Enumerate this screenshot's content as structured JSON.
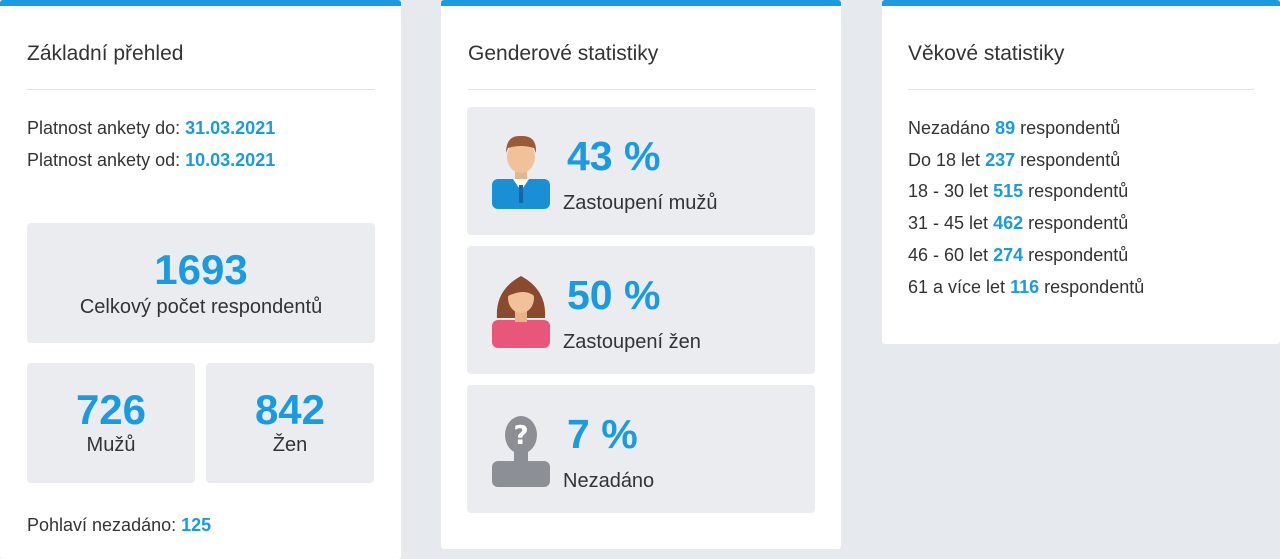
{
  "basic": {
    "title": "Základní přehled",
    "valid_to_label": "Platnost ankety do:",
    "valid_to_value": "31.03.2021",
    "valid_from_label": "Platnost ankety od:",
    "valid_from_value": "10.03.2021",
    "total_value": "1693",
    "total_label": "Celkový počet respondentů",
    "men_value": "726",
    "men_label": "Mužů",
    "women_value": "842",
    "women_label": "Žen",
    "unspecified_label": "Pohlaví nezadáno:",
    "unspecified_value": "125"
  },
  "gender": {
    "title": "Genderové statistiky",
    "items": [
      {
        "percent": "43 %",
        "label": "Zastoupení mužů",
        "icon": "man-avatar-icon"
      },
      {
        "percent": "50 %",
        "label": "Zastoupení žen",
        "icon": "woman-avatar-icon"
      },
      {
        "percent": "7 %",
        "label": "Nezadáno",
        "icon": "unknown-person-icon"
      }
    ]
  },
  "age": {
    "title": "Věkové statistiky",
    "rows": [
      {
        "label": "Nezadáno",
        "value": "89",
        "suffix": "respondentů"
      },
      {
        "label": "Do 18 let",
        "value": "237",
        "suffix": "respondentů"
      },
      {
        "label": "18 - 30 let",
        "value": "515",
        "suffix": "respondentů"
      },
      {
        "label": "31 - 45 let",
        "value": "462",
        "suffix": "respondentů"
      },
      {
        "label": "46 - 60 let",
        "value": "274",
        "suffix": "respondentů"
      },
      {
        "label": "61 a více let",
        "value": "116",
        "suffix": "respondentů"
      }
    ]
  },
  "colors": {
    "accent": "#1a9be0",
    "card_border": "#1a9be0",
    "box_bg": "#eaecef",
    "page_bg": "#e6e9ed"
  }
}
